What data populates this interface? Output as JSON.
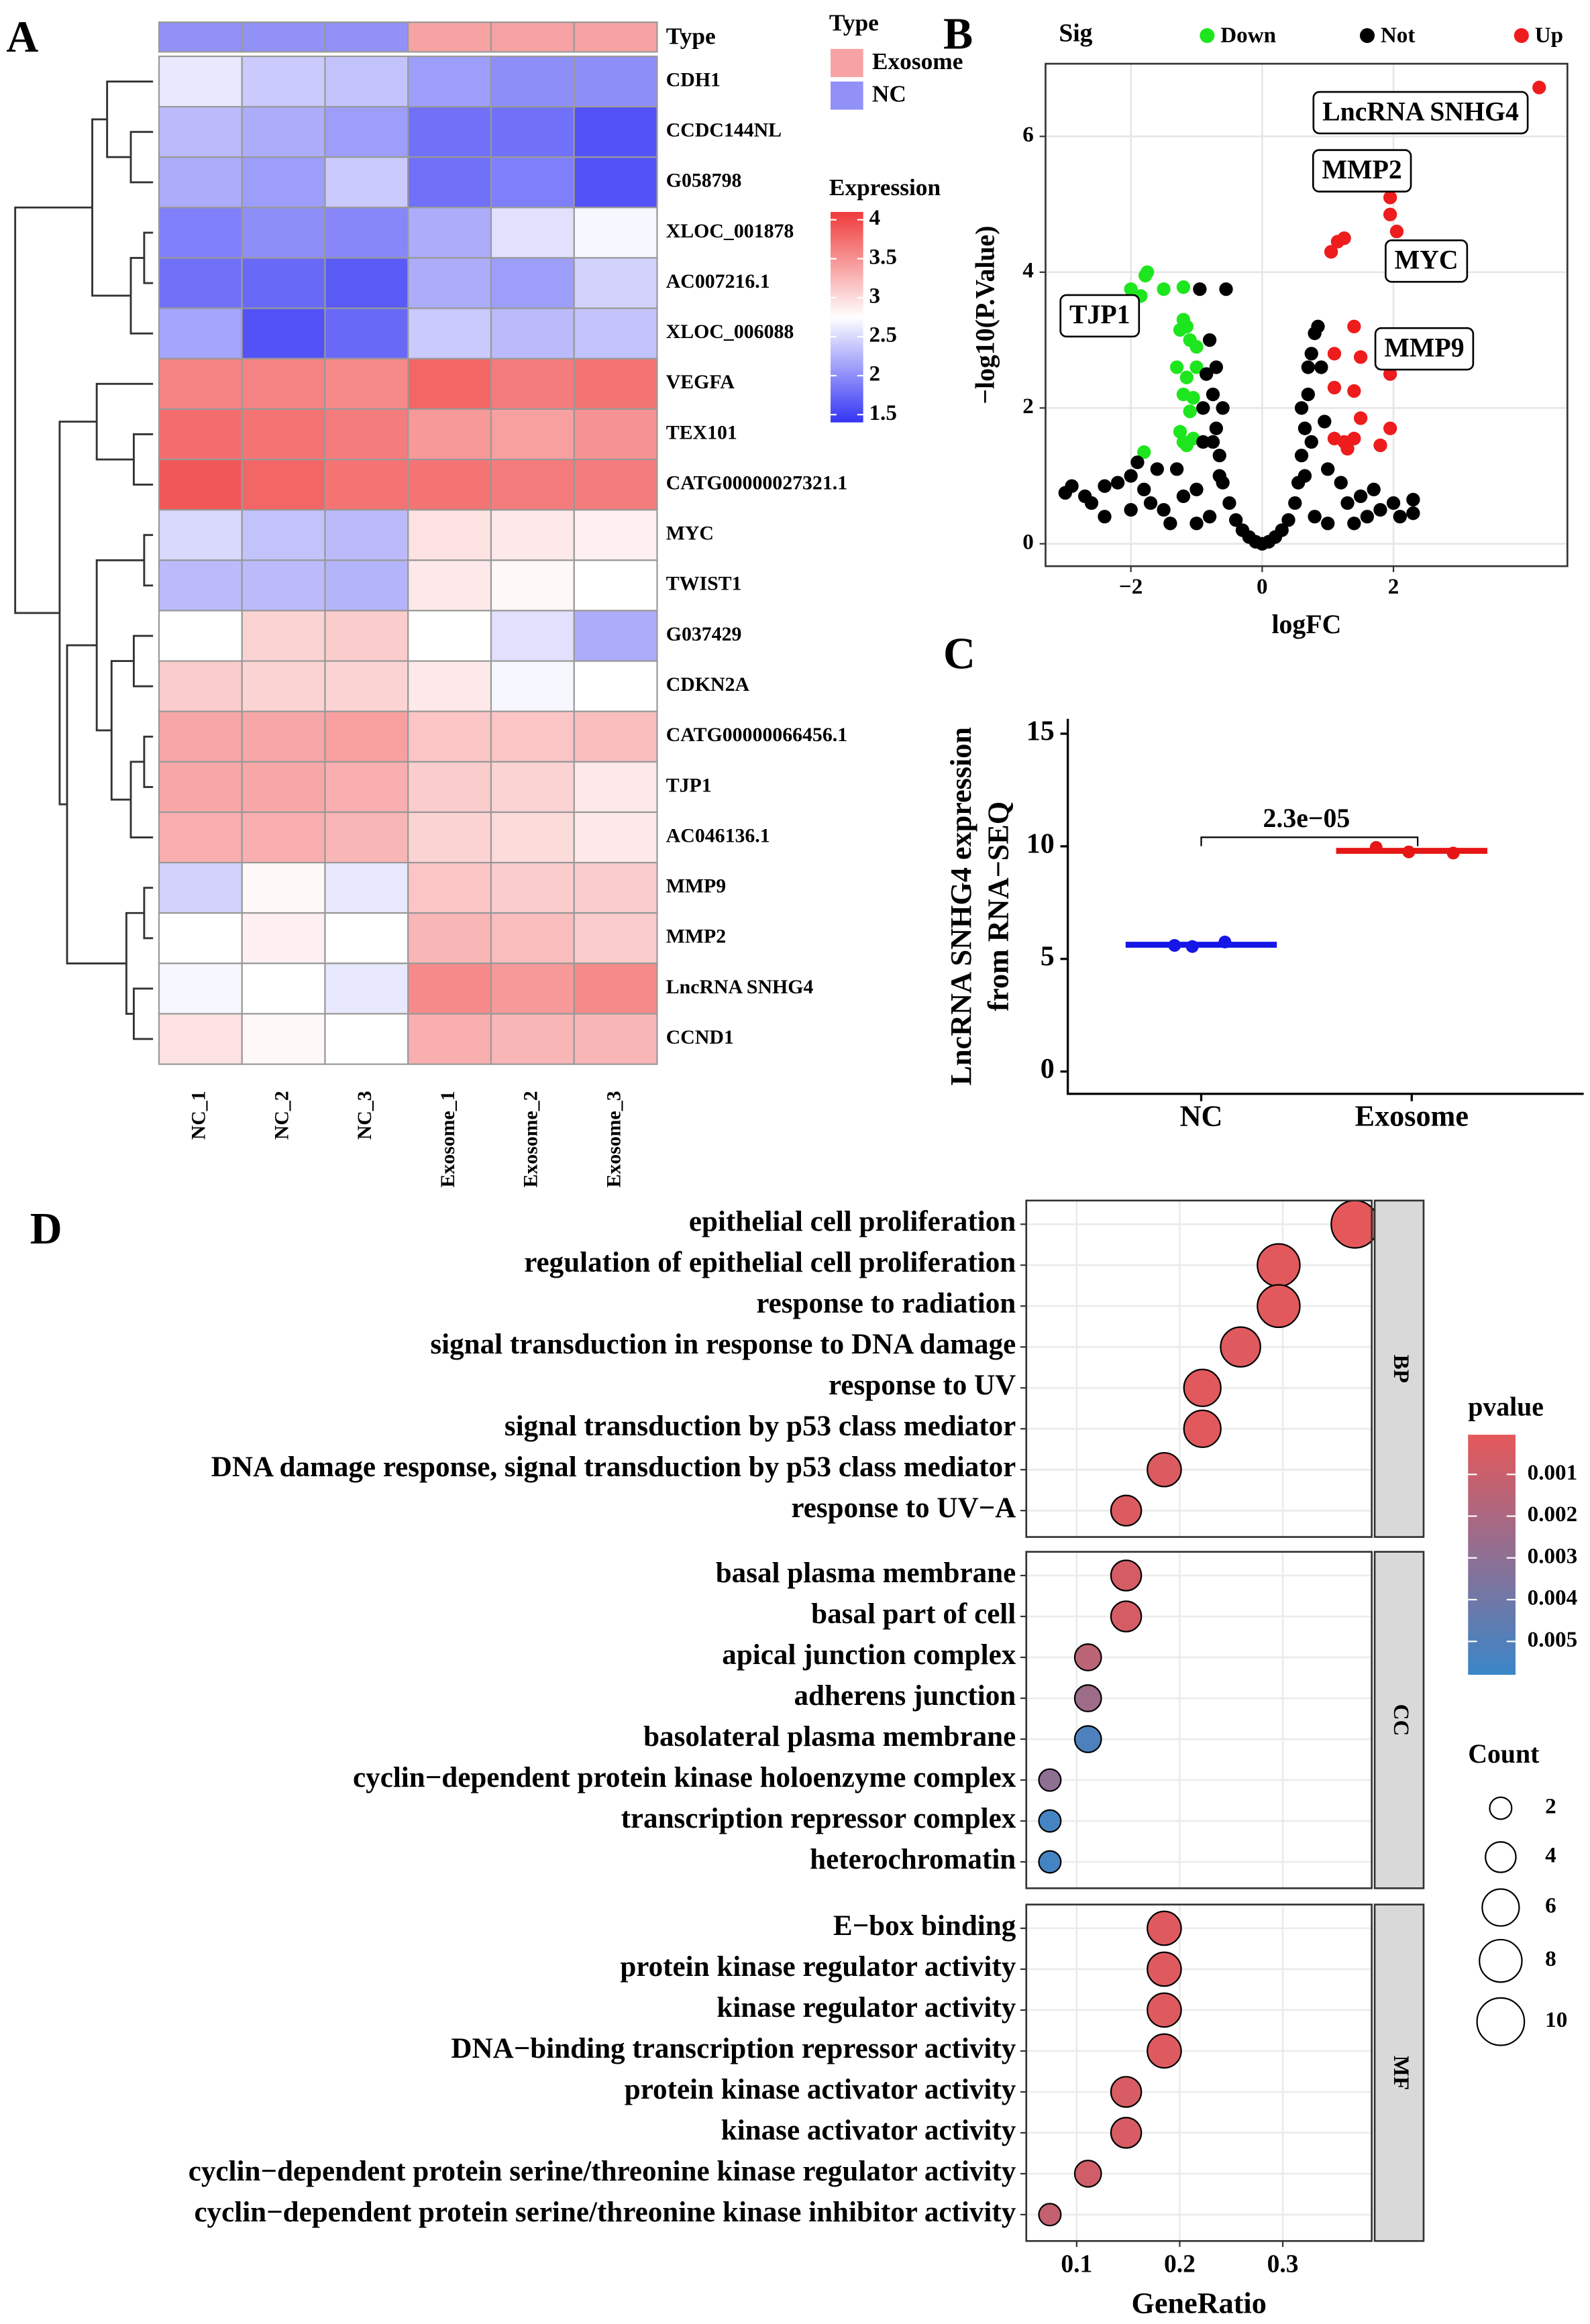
{
  "chart_data": [
    {
      "panel": "A",
      "type": "heatmap",
      "rows": [
        "CDH1",
        "CCDC144NL",
        "G058798",
        "XLOC_001878",
        "AC007216.1",
        "XLOC_006088",
        "VEGFA",
        "TEX101",
        "CATG00000027321.1",
        "MYC",
        "TWIST1",
        "G037429",
        "CDKN2A",
        "CATG00000066456.1",
        "TJP1",
        "AC046136.1",
        "MMP9",
        "MMP2",
        "LncRNA SNHG4",
        "CCND1"
      ],
      "columns": [
        "NC_1",
        "NC_2",
        "NC_3",
        "Exosome_1",
        "Exosome_2",
        "Exosome_3"
      ],
      "values": [
        [
          2.6,
          2.4,
          2.35,
          2.1,
          2.0,
          2.0
        ],
        [
          2.3,
          2.2,
          2.1,
          1.8,
          1.8,
          1.6
        ],
        [
          2.2,
          2.1,
          2.4,
          1.8,
          1.9,
          1.6
        ],
        [
          1.9,
          2.0,
          1.95,
          2.2,
          2.55,
          2.7
        ],
        [
          1.8,
          1.75,
          1.65,
          2.2,
          2.1,
          2.45
        ],
        [
          2.15,
          1.6,
          1.75,
          2.4,
          2.3,
          2.35
        ],
        [
          3.6,
          3.6,
          3.55,
          3.8,
          3.65,
          3.7
        ],
        [
          3.75,
          3.7,
          3.65,
          3.45,
          3.4,
          3.5
        ],
        [
          3.9,
          3.8,
          3.7,
          3.7,
          3.65,
          3.65
        ],
        [
          2.5,
          2.35,
          2.3,
          2.95,
          2.9,
          2.85
        ],
        [
          2.3,
          2.3,
          2.25,
          2.9,
          2.8,
          2.75
        ],
        [
          2.75,
          3.05,
          3.1,
          2.75,
          2.55,
          2.2
        ],
        [
          3.1,
          3.05,
          3.05,
          2.9,
          2.7,
          2.75
        ],
        [
          3.35,
          3.35,
          3.4,
          3.15,
          3.15,
          3.2
        ],
        [
          3.35,
          3.35,
          3.3,
          3.1,
          3.05,
          2.9
        ],
        [
          3.3,
          3.3,
          3.25,
          3.05,
          3.0,
          2.9
        ],
        [
          2.45,
          2.8,
          2.6,
          3.15,
          3.1,
          3.1
        ],
        [
          2.75,
          2.85,
          2.75,
          3.25,
          3.2,
          3.1
        ],
        [
          2.7,
          2.75,
          2.6,
          3.55,
          3.45,
          3.55
        ],
        [
          2.95,
          2.8,
          2.75,
          3.3,
          3.25,
          3.25
        ]
      ],
      "annotation": {
        "label": "Type",
        "legend_title": "Type",
        "values": [
          "NC",
          "NC",
          "NC",
          "Exosome",
          "Exosome",
          "Exosome"
        ],
        "legend": [
          {
            "name": "Exosome",
            "color": "#f7a3a3"
          },
          {
            "name": "NC",
            "color": "#9191f7"
          }
        ]
      },
      "colorbar": {
        "title": "Expression",
        "ticks": [
          4,
          3.5,
          3,
          2.5,
          2,
          1.5
        ],
        "clim": [
          1.4,
          4.1
        ],
        "cmid": 2.75,
        "colors": [
          "#3434f5",
          "#ffffff",
          "#f03a3a"
        ]
      }
    },
    {
      "panel": "B",
      "type": "scatter",
      "xlabel": "logFC",
      "ylabel": "−log10(P.Value)",
      "legend_title": "Sig",
      "grid": true,
      "xlim": [
        -3.3,
        4.65
      ],
      "ylim": [
        -0.33,
        7.07
      ],
      "xticks": [
        {
          "value": -2,
          "label": "−2"
        },
        0,
        2
      ],
      "yticks": [
        0,
        2,
        4,
        6
      ],
      "series": [
        {
          "name": "Down",
          "color": "#1ee61e",
          "x": [
            -1.75,
            -1.78,
            -2.0,
            -1.85,
            -1.5,
            -1.2,
            -1.2,
            -1.15,
            -1.25,
            -1.1,
            -1.0,
            -1.3,
            -1.0,
            -1.15,
            -1.2,
            -1.05,
            -1.1,
            -1.25,
            -1.2,
            -1.05,
            -1.8,
            -1.15
          ],
          "values": [
            4.0,
            3.95,
            3.75,
            3.65,
            3.75,
            3.78,
            3.3,
            3.2,
            3.15,
            3.0,
            2.9,
            2.6,
            2.6,
            2.45,
            2.2,
            2.15,
            1.95,
            1.65,
            1.5,
            1.55,
            1.35,
            1.45
          ]
        },
        {
          "name": "Not",
          "color": "#000000",
          "x": [
            -3.0,
            -2.9,
            -2.7,
            -2.4,
            -2.2,
            -2.0,
            -1.9,
            -1.6,
            -1.7,
            -1.3,
            -1.0,
            -0.9,
            -0.9,
            -0.85,
            -0.8,
            -0.75,
            -0.7,
            -0.65,
            -0.6,
            -0.55,
            -0.5,
            -0.4,
            -0.3,
            -0.2,
            -0.1,
            0,
            0.1,
            0.2,
            0.3,
            0.4,
            0.5,
            0.55,
            0.6,
            0.65,
            0.7,
            0.75,
            0.8,
            0.9,
            0.85,
            0.95,
            1.0,
            1.2,
            1.5,
            1.8,
            2.1,
            2.3,
            2.3,
            -2.4,
            -1.4,
            -1.0,
            1.0,
            1.4,
            -0.8,
            0.8,
            -2.0,
            -1.5,
            1.6,
            -1.2,
            1.3,
            -0.95,
            -0.7,
            -0.6,
            0.6,
            0.7,
            -0.65,
            0.65,
            -0.75,
            0.75,
            -2.6,
            -1.8,
            1.7,
            2.0
          ],
          "values": [
            0.75,
            0.85,
            0.7,
            0.85,
            0.9,
            1.0,
            1.2,
            1.1,
            0.6,
            1.1,
            0.8,
            1.5,
            2.0,
            2.5,
            3.0,
            2.2,
            1.7,
            1.3,
            0.9,
            3.75,
            0.6,
            0.35,
            0.2,
            0.1,
            0.03,
            0,
            0.03,
            0.1,
            0.2,
            0.35,
            0.6,
            0.9,
            1.3,
            1.7,
            2.2,
            2.8,
            3.1,
            2.6,
            3.2,
            1.8,
            1.1,
            0.9,
            0.7,
            0.5,
            0.4,
            0.65,
            0.45,
            0.4,
            0.3,
            0.3,
            0.3,
            0.3,
            0.4,
            0.4,
            0.5,
            0.5,
            0.4,
            0.7,
            0.6,
            3.75,
            2.6,
            2.0,
            2.0,
            2.6,
            1.0,
            1.0,
            1.5,
            1.5,
            0.6,
            0.8,
            0.8,
            0.6
          ]
        },
        {
          "name": "Up",
          "color": "#ee1c1c",
          "x": [
            4.22,
            1.95,
            1.95,
            2.05,
            1.25,
            1.15,
            1.05,
            1.4,
            1.1,
            1.5,
            1.9,
            1.95,
            1.1,
            1.4,
            1.5,
            1.95,
            1.1,
            1.25,
            1.4,
            1.8,
            1.3
          ],
          "values": [
            6.72,
            5.1,
            4.85,
            4.6,
            4.5,
            4.45,
            4.3,
            3.2,
            2.8,
            2.75,
            2.7,
            2.5,
            2.3,
            2.25,
            1.85,
            1.7,
            1.55,
            1.5,
            1.55,
            1.45,
            1.4
          ]
        }
      ],
      "annotations": [
        {
          "text": "LncRNA SNHG4",
          "x": 4.22,
          "y": 6.72
        },
        {
          "text": "MMP2",
          "x": 1.95,
          "y": 5.1
        },
        {
          "text": "MYC",
          "x": 2.05,
          "y": 4.6
        },
        {
          "text": "MMP9",
          "x": 1.95,
          "y": 2.5
        },
        {
          "text": "TJP1",
          "x": -2.0,
          "y": 3.75
        }
      ]
    },
    {
      "panel": "C",
      "type": "dot",
      "ylabel": [
        "LncRNA SNHG4 expression",
        "from RNA−SEQ"
      ],
      "categories": [
        "NC",
        "Exosome"
      ],
      "colors": [
        "#1616e6",
        "#e61616"
      ],
      "values": [
        [
          5.6,
          5.55,
          5.75
        ],
        [
          9.95,
          9.75,
          9.7
        ]
      ],
      "means": [
        5.63,
        9.8
      ],
      "ylim": [
        -0.99,
        15.66
      ],
      "yticks": [
        0,
        5,
        10,
        15
      ],
      "annotation": {
        "text": "2.3e−05",
        "y": 10.4
      }
    },
    {
      "panel": "D",
      "type": "bubble",
      "xlabel": "GeneRatio",
      "xlim": [
        0.0511,
        0.3863
      ],
      "xticks": [
        0.1,
        0.2,
        0.3
      ],
      "facets": [
        {
          "name": "BP",
          "terms": [
            "epithelial cell proliferation",
            "regulation of epithelial cell proliferation",
            "response to radiation",
            "signal transduction in response to DNA damage",
            "response to UV",
            "signal transduction by p53 class mediator",
            "DNA damage response, signal transduction by p53 class mediator",
            "response to UV−A"
          ],
          "values": [
            0.37,
            0.296,
            0.296,
            0.259,
            0.222,
            0.222,
            0.185,
            0.148
          ],
          "counts": [
            10,
            8,
            8,
            7,
            6,
            6,
            5,
            4
          ],
          "pvalues": [
            5e-05,
            0.0002,
            0.0002,
            0.0003,
            0.0002,
            0.0002,
            0.0004,
            0.0004
          ]
        },
        {
          "name": "CC",
          "terms": [
            "basal plasma membrane",
            "basal part of cell",
            "apical junction complex",
            "adherens junction",
            "basolateral plasma membrane",
            "cyclin−dependent protein kinase holoenzyme complex",
            "transcription repressor complex",
            "heterochromatin"
          ],
          "values": [
            0.148,
            0.148,
            0.111,
            0.111,
            0.111,
            0.074,
            0.074,
            0.074
          ],
          "counts": [
            4,
            4,
            3,
            3,
            3,
            2,
            2,
            2
          ],
          "pvalues": [
            0.0006,
            0.0006,
            0.0015,
            0.0025,
            0.0052,
            0.003,
            0.0055,
            0.0055
          ]
        },
        {
          "name": "MF",
          "terms": [
            "E−box binding",
            "protein kinase regulator activity",
            "kinase regulator activity",
            "DNA−binding transcription repressor activity",
            "protein kinase activator activity",
            "kinase activator activity",
            "cyclin−dependent protein serine/threonine kinase regulator activity",
            "cyclin−dependent protein serine/threonine kinase inhibitor activity"
          ],
          "values": [
            0.185,
            0.185,
            0.185,
            0.185,
            0.148,
            0.148,
            0.111,
            0.074
          ],
          "counts": [
            5,
            5,
            5,
            5,
            4,
            4,
            3,
            2
          ],
          "pvalues": [
            0.0003,
            0.0003,
            0.0003,
            0.0003,
            0.0005,
            0.0005,
            0.0008,
            0.0012
          ]
        }
      ],
      "color_legend": {
        "title": "pvalue",
        "ticks": [
          0.001,
          0.002,
          0.003,
          0.004,
          0.005
        ],
        "clim": [
          5e-05,
          0.0058
        ],
        "colors": [
          "#e5585a",
          "#3b86c9"
        ]
      },
      "size_legend": {
        "title": "Count",
        "ticks": [
          2,
          4,
          6,
          8,
          10
        ]
      }
    }
  ]
}
